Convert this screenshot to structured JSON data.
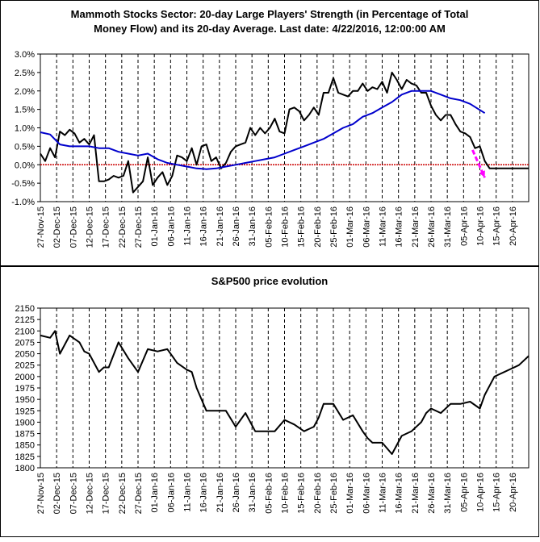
{
  "chart_data": [
    {
      "type": "line",
      "title_line1": "Mammoth Stocks Sector: 20-day Large Players' Strength (in Percentage of Total",
      "title_line2": "Money Flow) and its 20-day Average. Last date: 4/22/2016, 12:00:00 AM",
      "ylim": [
        -1.0,
        3.0
      ],
      "yticks": [
        "3.0%",
        "2.5%",
        "2.0%",
        "1.5%",
        "1.0%",
        "0.5%",
        "0.0%",
        "-0.5%",
        "-1.0%"
      ],
      "xlim": [
        0,
        100
      ],
      "xticks": [
        "27-Nov-15",
        "02-Dec-15",
        "07-Dec-15",
        "12-Dec-15",
        "17-Dec-15",
        "22-Dec-15",
        "27-Dec-15",
        "01-Jan-16",
        "06-Jan-16",
        "11-Jan-16",
        "16-Jan-16",
        "21-Jan-16",
        "26-Jan-16",
        "31-Jan-16",
        "05-Feb-16",
        "10-Feb-16",
        "15-Feb-16",
        "20-Feb-16",
        "25-Feb-16",
        "01-Mar-16",
        "06-Mar-16",
        "11-Mar-16",
        "16-Mar-16",
        "21-Mar-16",
        "26-Mar-16",
        "31-Mar-16",
        "05-Apr-16",
        "10-Apr-16",
        "15-Apr-16",
        "20-Apr-16"
      ],
      "zero_line_color": "#cc0000",
      "series": [
        {
          "color": "#000000",
          "x": [
            0,
            1,
            2,
            3,
            4,
            5,
            6,
            7,
            8,
            9,
            10,
            11,
            12,
            13,
            14,
            15,
            16,
            17,
            18,
            19,
            20,
            21,
            22,
            23,
            24,
            25,
            26,
            27,
            28,
            29,
            30,
            31,
            32,
            33,
            34,
            35,
            36,
            37,
            38,
            39,
            40,
            41,
            42,
            43,
            44,
            45,
            46,
            47,
            48,
            49,
            50,
            51,
            52,
            53,
            54,
            55,
            56,
            57,
            58,
            59,
            60,
            61,
            62,
            63,
            64,
            65,
            66,
            67,
            68,
            69,
            70,
            71,
            72,
            73,
            74,
            75,
            76,
            77,
            78,
            79,
            80,
            81,
            82,
            83,
            84,
            85,
            86,
            87,
            88,
            89,
            90,
            91,
            92,
            93,
            94,
            95,
            96,
            97,
            98,
            99,
            100
          ],
          "values": [
            0.3,
            0.1,
            0.45,
            0.2,
            0.9,
            0.8,
            0.95,
            0.85,
            0.6,
            0.7,
            0.55,
            0.8,
            -0.45,
            -0.45,
            -0.4,
            -0.3,
            -0.35,
            -0.3,
            0.1,
            -0.75,
            -0.6,
            -0.45,
            0.2,
            -0.55,
            -0.35,
            -0.2,
            -0.55,
            -0.3,
            0.25,
            0.2,
            0.1,
            0.45,
            0.0,
            0.5,
            0.55,
            0.1,
            0.2,
            -0.1,
            0.05,
            0.35,
            0.5,
            0.55,
            0.6,
            1.0,
            0.8,
            1.0,
            0.85,
            1.0,
            1.25,
            0.9,
            0.85,
            1.5,
            1.55,
            1.45,
            1.2,
            1.35,
            1.55,
            1.35,
            1.95,
            1.95,
            2.35,
            1.95,
            1.9,
            1.85,
            2.0,
            2.0,
            2.2,
            2.0,
            2.1,
            2.05,
            2.25,
            1.95,
            2.5,
            2.3,
            2.05,
            2.3,
            2.2,
            2.15,
            1.95,
            1.95,
            1.6,
            1.35,
            1.2,
            1.35,
            1.35,
            1.1,
            0.9,
            0.85,
            0.75,
            0.45,
            0.5,
            0.1,
            -0.1,
            -0.1,
            -0.1,
            -0.1,
            -0.1,
            -0.1,
            -0.1,
            -0.1,
            -0.1
          ]
        },
        {
          "color": "#0000cc",
          "x": [
            0,
            2,
            4,
            6,
            8,
            10,
            12,
            14,
            16,
            18,
            20,
            22,
            24,
            26,
            28,
            30,
            32,
            34,
            36,
            38,
            40,
            42,
            44,
            46,
            48,
            50,
            52,
            54,
            56,
            58,
            60,
            62,
            64,
            66,
            68,
            70,
            72,
            74,
            76,
            78,
            80,
            82,
            84,
            86,
            88,
            91
          ],
          "values": [
            0.88,
            0.82,
            0.55,
            0.5,
            0.5,
            0.5,
            0.45,
            0.45,
            0.35,
            0.3,
            0.25,
            0.3,
            0.15,
            0.05,
            0.0,
            -0.05,
            -0.1,
            -0.12,
            -0.1,
            -0.05,
            0.0,
            0.05,
            0.1,
            0.15,
            0.2,
            0.3,
            0.4,
            0.5,
            0.6,
            0.7,
            0.85,
            1.0,
            1.1,
            1.3,
            1.4,
            1.55,
            1.7,
            1.9,
            2.0,
            2.0,
            2.0,
            1.9,
            1.8,
            1.75,
            1.65,
            1.4
          ]
        }
      ],
      "annotation": {
        "type": "arrow",
        "color": "#ff00ff",
        "from": [
          88.5,
          0.4
        ],
        "to": [
          91,
          -0.35
        ]
      }
    },
    {
      "type": "line",
      "title": "S&P500 price evolution",
      "ylim": [
        1800,
        2150
      ],
      "yticks": [
        "2150",
        "2125",
        "2100",
        "2075",
        "2050",
        "2025",
        "2000",
        "1975",
        "1950",
        "1925",
        "1900",
        "1875",
        "1850",
        "1825",
        "1800"
      ],
      "xticks": [
        "27-Nov-15",
        "02-Dec-15",
        "07-Dec-15",
        "12-Dec-15",
        "17-Dec-15",
        "22-Dec-15",
        "27-Dec-15",
        "01-Jan-16",
        "06-Jan-16",
        "11-Jan-16",
        "16-Jan-16",
        "21-Jan-16",
        "26-Jan-16",
        "31-Jan-16",
        "05-Feb-16",
        "10-Feb-16",
        "15-Feb-16",
        "20-Feb-16",
        "25-Feb-16",
        "01-Mar-16",
        "06-Mar-16",
        "11-Mar-16",
        "16-Mar-16",
        "21-Mar-16",
        "26-Mar-16",
        "31-Mar-16",
        "05-Apr-16",
        "10-Apr-16",
        "15-Apr-16",
        "20-Apr-16"
      ],
      "series": [
        {
          "color": "#000000",
          "x": [
            0,
            2,
            3,
            4,
            6,
            8,
            9,
            10,
            12,
            13,
            14,
            16,
            18,
            20,
            22,
            24,
            26,
            27,
            28,
            30,
            31,
            32,
            34,
            36,
            38,
            40,
            42,
            44,
            46,
            48,
            50,
            52,
            54,
            56,
            57,
            58,
            60,
            62,
            64,
            66,
            67,
            68,
            70,
            72,
            74,
            76,
            78,
            79,
            80,
            82,
            84,
            86,
            88,
            90,
            91,
            92,
            93,
            94,
            95,
            96,
            98,
            100
          ],
          "values": [
            2090,
            2085,
            2100,
            2050,
            2090,
            2075,
            2055,
            2050,
            2010,
            2020,
            2020,
            2075,
            2040,
            2010,
            2060,
            2055,
            2060,
            2045,
            2030,
            2015,
            2010,
            1975,
            1925,
            1925,
            1925,
            1890,
            1920,
            1880,
            1880,
            1880,
            1905,
            1895,
            1880,
            1890,
            1910,
            1940,
            1940,
            1905,
            1915,
            1880,
            1865,
            1855,
            1855,
            1830,
            1870,
            1880,
            1900,
            1920,
            1930,
            1920,
            1940,
            1940,
            1945,
            1930,
            1960,
            1980,
            2000,
            2005,
            2010,
            2015,
            2025,
            2045
          ]
        }
      ]
    }
  ]
}
